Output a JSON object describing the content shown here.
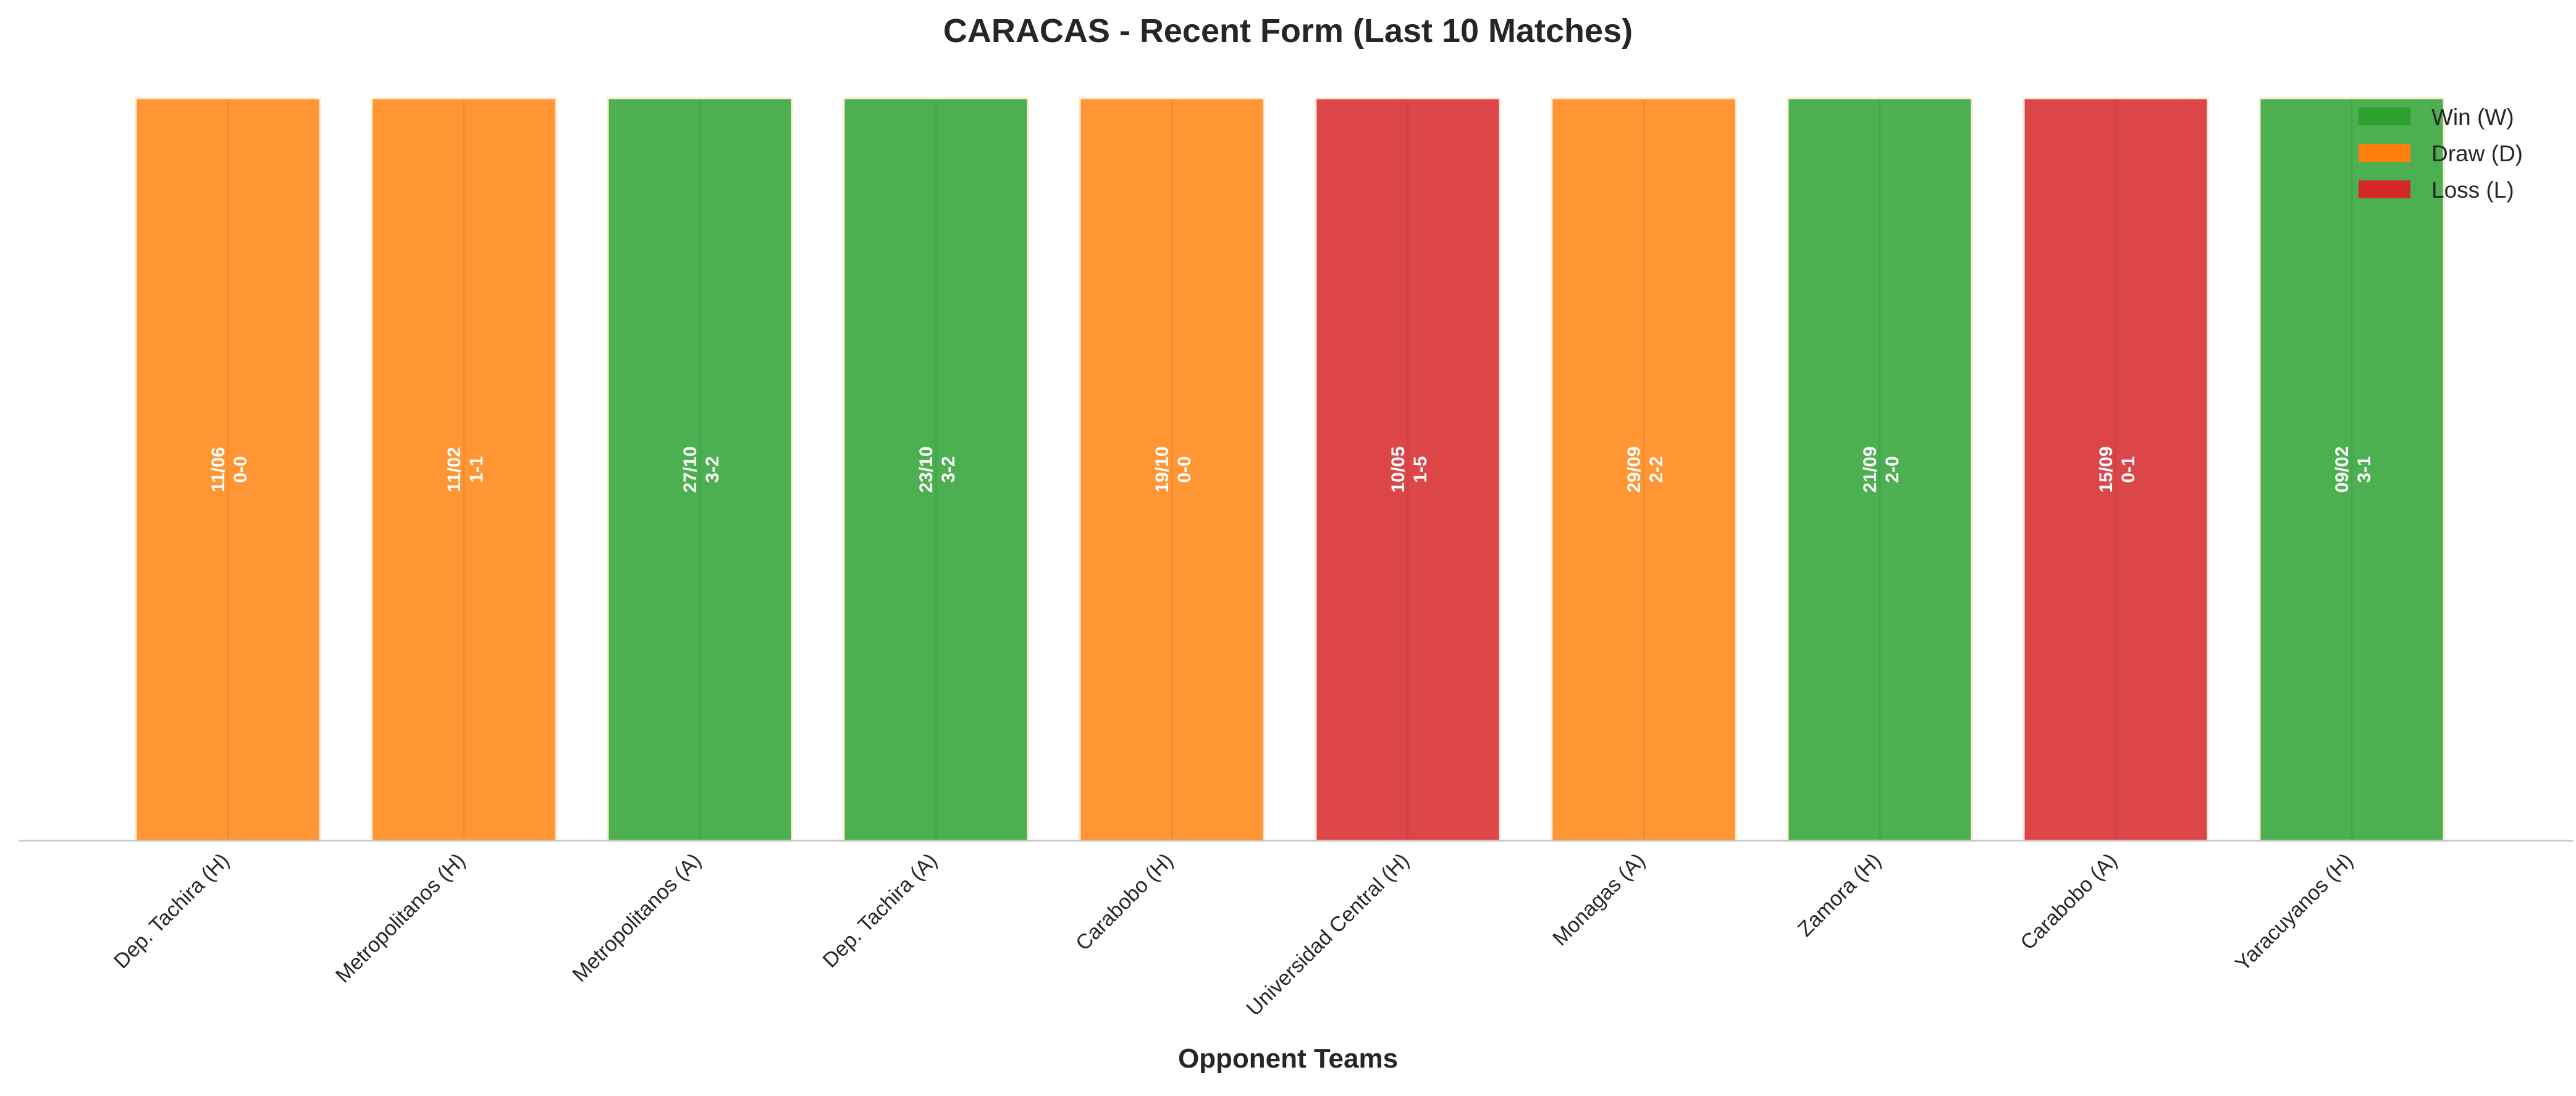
{
  "chart_data": {
    "type": "bar",
    "title": "CARACAS - Recent Form (Last 10 Matches)",
    "xlabel": "Opponent Teams",
    "ylabel": "",
    "grid": false,
    "legend_placement": "top-right",
    "categories": [
      "Dep. Tachira (H)",
      "Metropolitanos (H)",
      "Metropolitanos (A)",
      "Dep. Tachira (A)",
      "Carabobo (H)",
      "Universidad Central (H)",
      "Monagas (A)",
      "Zamora (H)",
      "Carabobo (A)",
      "Yaracuyanos (H)"
    ],
    "values": [
      1,
      1,
      1,
      1,
      1,
      1,
      1,
      1,
      1,
      1
    ],
    "results": [
      "D",
      "D",
      "W",
      "W",
      "D",
      "L",
      "D",
      "W",
      "L",
      "W"
    ],
    "dates": [
      "11/06",
      "11/02",
      "27/10",
      "23/10",
      "19/10",
      "10/05",
      "29/09",
      "21/09",
      "15/09",
      "09/02"
    ],
    "scores": [
      "0-0",
      "1-1",
      "3-2",
      "3-2",
      "0-0",
      "1-5",
      "2-2",
      "2-0",
      "0-1",
      "3-1"
    ],
    "legend": [
      {
        "key": "W",
        "label": "Win (W)"
      },
      {
        "key": "D",
        "label": "Draw (D)"
      },
      {
        "key": "L",
        "label": "Loss (L)"
      }
    ],
    "colors": {
      "W": "#4caf50",
      "D": "#ff9533",
      "L": "#dc4649",
      "legend_W": "#2ca02c",
      "legend_D": "#ff7f0e",
      "legend_L": "#d62728"
    }
  }
}
